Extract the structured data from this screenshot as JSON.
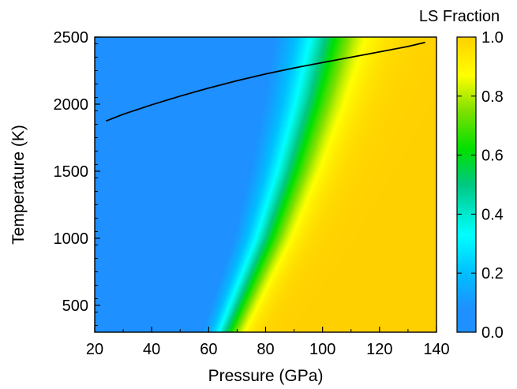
{
  "chart_data": {
    "type": "heatmap",
    "xlabel": "Pressure (GPa)",
    "ylabel": "Temperature (K)",
    "xlim": [
      20,
      140
    ],
    "ylim": [
      300,
      2500
    ],
    "x_ticks": [
      "20",
      "40",
      "60",
      "80",
      "100",
      "120",
      "140"
    ],
    "y_ticks": [
      "500",
      "1000",
      "1500",
      "2000",
      "2500"
    ],
    "colorbar": {
      "title": "LS Fraction",
      "range": [
        0.0,
        1.0
      ],
      "ticks": [
        "0.0",
        "0.2",
        "0.4",
        "0.6",
        "0.8",
        "1.0"
      ],
      "colormap": [
        {
          "value": 0.0,
          "color": "#1E90FF"
        },
        {
          "value": 0.08,
          "color": "#1E90FF"
        },
        {
          "value": 0.2,
          "color": "#00BFFF"
        },
        {
          "value": 0.33,
          "color": "#00FFFF"
        },
        {
          "value": 0.5,
          "color": "#00C882"
        },
        {
          "value": 0.62,
          "color": "#00E000"
        },
        {
          "value": 0.75,
          "color": "#7FE000"
        },
        {
          "value": 0.87,
          "color": "#FFFF00"
        },
        {
          "value": 1.0,
          "color": "#FFD000"
        }
      ]
    },
    "transition": {
      "midpoint_pressure_gpa": [
        {
          "temperature": 300,
          "pressure": 66
        },
        {
          "temperature": 500,
          "pressure": 70
        },
        {
          "temperature": 1000,
          "pressure": 80
        },
        {
          "temperature": 1500,
          "pressure": 88
        },
        {
          "temperature": 2000,
          "pressure": 95
        },
        {
          "temperature": 2500,
          "pressure": 101
        }
      ],
      "width_gpa": [
        {
          "temperature": 300,
          "width": 3.5
        },
        {
          "temperature": 2500,
          "width": 7.5
        }
      ]
    },
    "series": [
      {
        "type": "line",
        "color": "#000000",
        "x": [
          24,
          30,
          40,
          50,
          60,
          70,
          80,
          90,
          100,
          110,
          120,
          130,
          136
        ],
        "y": [
          1875,
          1925,
          1995,
          2060,
          2120,
          2175,
          2225,
          2270,
          2310,
          2350,
          2390,
          2430,
          2460
        ]
      }
    ]
  }
}
